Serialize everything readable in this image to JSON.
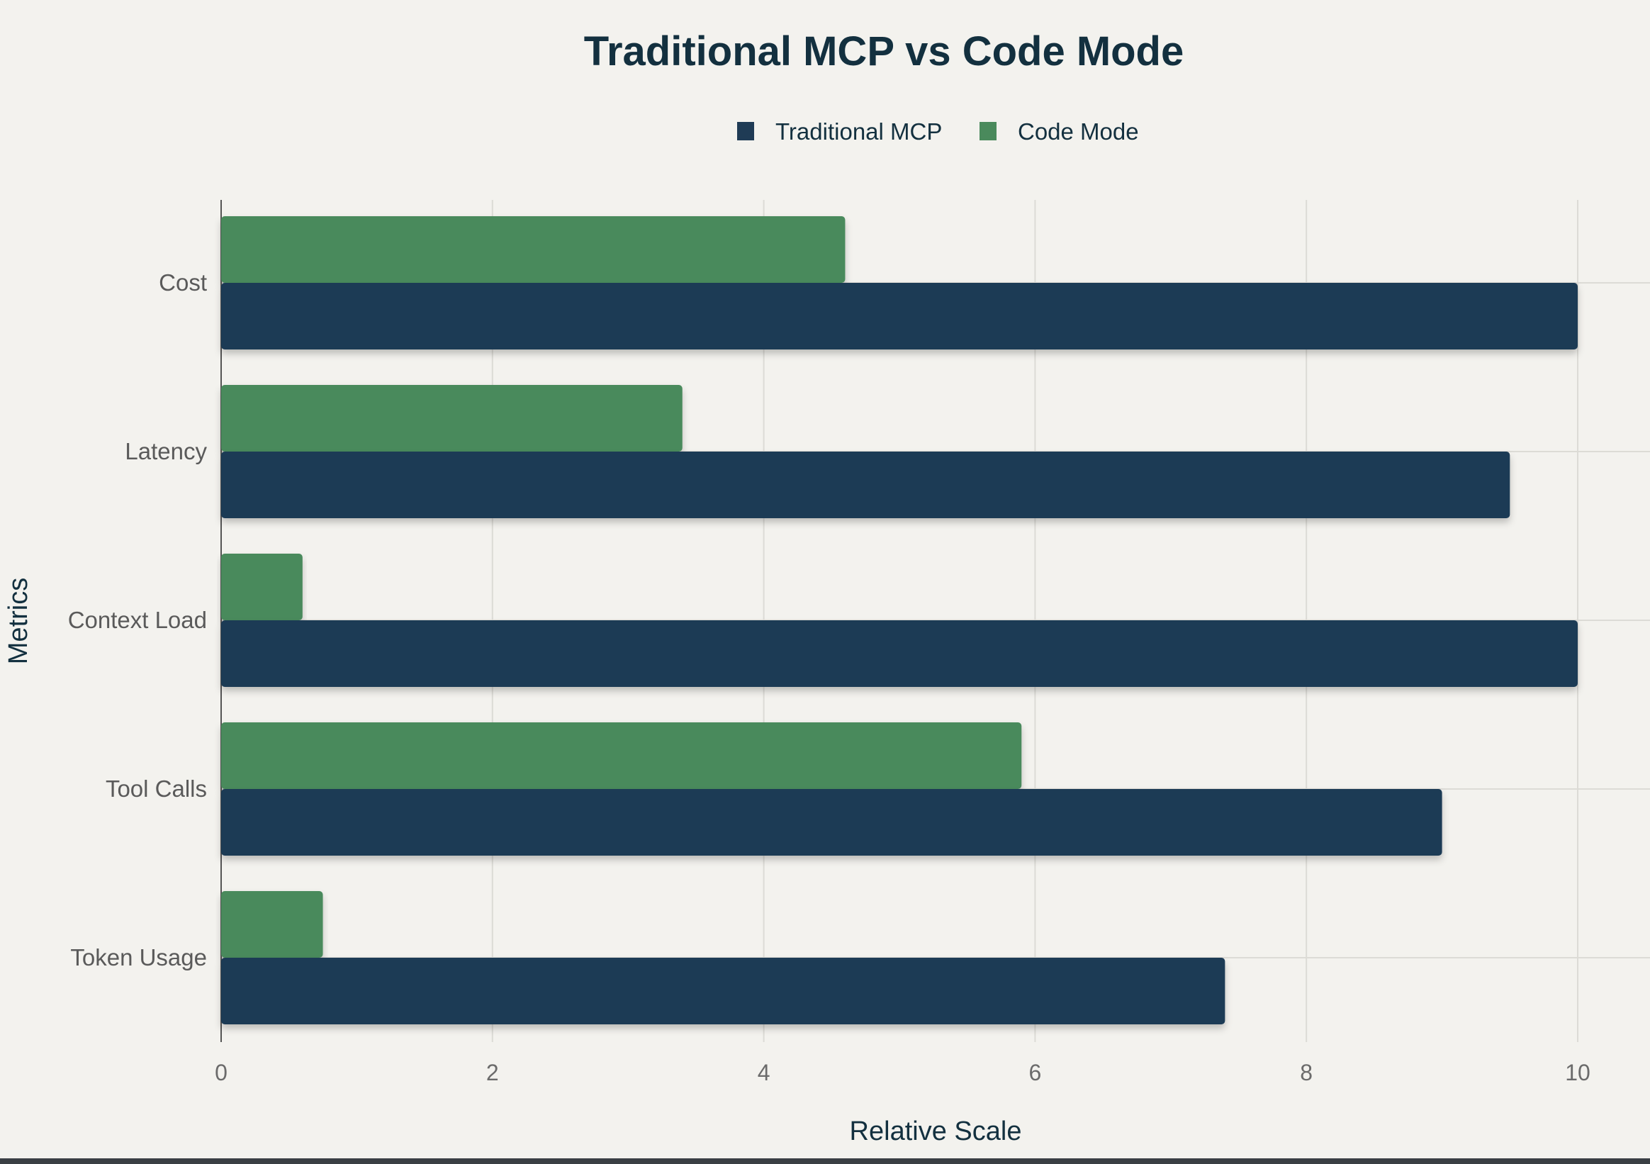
{
  "chart_data": {
    "type": "bar",
    "orientation": "horizontal",
    "title": "Traditional MCP vs Code Mode",
    "xlabel": "Relative Scale",
    "ylabel": "Metrics",
    "xlim": [
      0,
      10
    ],
    "xticks": [
      0,
      2,
      4,
      6,
      8,
      10
    ],
    "grid": true,
    "legend_position": "top",
    "categories": [
      "Cost",
      "Latency",
      "Context Load",
      "Tool Calls",
      "Token Usage"
    ],
    "series": [
      {
        "name": "Traditional MCP",
        "color": "#1f3b55",
        "values": [
          10,
          9.5,
          10,
          9.0,
          7.4
        ]
      },
      {
        "name": "Code Mode",
        "color": "#4a8a5c",
        "values": [
          4.6,
          3.4,
          0.6,
          5.9,
          0.75
        ]
      }
    ]
  }
}
